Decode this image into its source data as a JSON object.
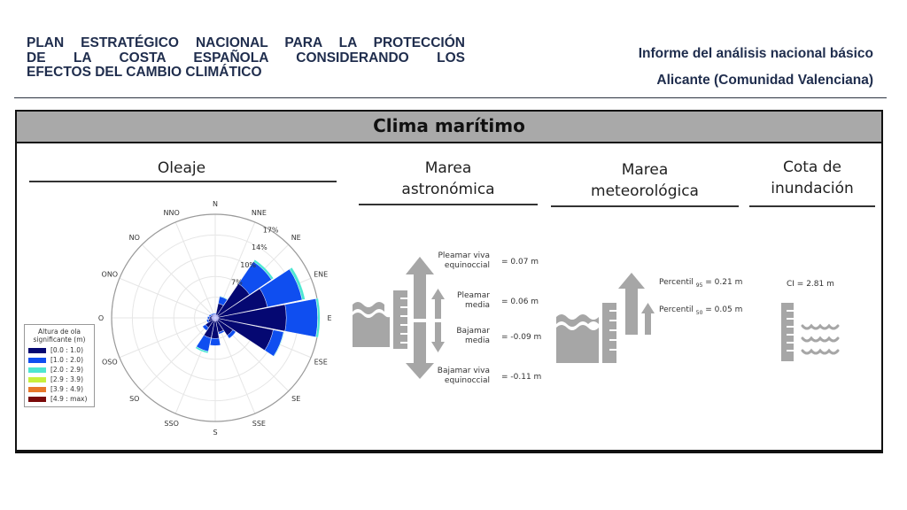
{
  "header": {
    "left_lines": [
      "PLAN ESTRATÉGICO NACIONAL PARA LA PROTECCIÓN",
      "DE LA COSTA ESPAÑOLA CONSIDERANDO LOS",
      "EFECTOS DEL CAMBIO CLIMÁTICO"
    ],
    "report_title": "Informe del análisis nacional básico",
    "location": "Alicante (Comunidad Valenciana)"
  },
  "panel": {
    "title": "Clima marítimo",
    "sections": {
      "oleaje": "Oleaje",
      "marea_astro_1": "Marea",
      "marea_astro_2": "astronómica",
      "marea_meteo_1": "Marea",
      "marea_meteo_2": "meteorológica",
      "cota_1": "Cota de",
      "cota_2": "inundación"
    }
  },
  "astronomical_tide": {
    "items": [
      {
        "label_1": "Pleamar viva",
        "label_2": "equinoccial",
        "value": "= 0.07 m"
      },
      {
        "label_1": "Pleamar",
        "label_2": "media",
        "value": "= 0.06 m"
      },
      {
        "label_1": "Bajamar",
        "label_2": "media",
        "value": "= -0.09 m"
      },
      {
        "label_1": "Bajamar viva",
        "label_2": "equinoccial",
        "value": "= -0.11 m"
      }
    ]
  },
  "meteorological_tide": {
    "p95": {
      "label": "Percentil",
      "sub": "95",
      "value": "= 0.21 m"
    },
    "p50": {
      "label": "Percentil",
      "sub": "50",
      "value": "= 0.05 m"
    }
  },
  "flood_level": {
    "value": "CI = 2.81 m"
  },
  "colors": {
    "navy": "#050872",
    "blue": "#0f4ef0",
    "cyan": "#4de6d2",
    "yellow": "#c8f03c",
    "orange": "#e8782a",
    "darkred": "#7a0a0a",
    "icon_gray": "#a6a6a6",
    "header_text": "#1f2d4d"
  },
  "chart_data": {
    "type": "wind-rose",
    "title": "Oleaje",
    "directions": [
      "N",
      "NNE",
      "NE",
      "ENE",
      "E",
      "ESE",
      "SE",
      "SSE",
      "S",
      "SSO",
      "SO",
      "OSO",
      "O",
      "ONO",
      "NO",
      "NNO"
    ],
    "radial_ticks": [
      "3%",
      "7%",
      "10%",
      "14%",
      "17%"
    ],
    "rmax": 17.5,
    "legend_title": "Altura de ola significante (m)",
    "bins": [
      "[0.0 : 1.0)",
      "[1.0 : 2.0)",
      "[2.0 : 2.9)",
      "[2.9 : 3.9)",
      "[3.9 : 4.9)",
      "[4.9 : max)"
    ],
    "series": [
      {
        "name": "[0.0 : 1.0)",
        "color": "#050872",
        "values": [
          0.6,
          2.5,
          7.0,
          9.0,
          12.0,
          10.0,
          3.6,
          2.5,
          3.5,
          3.5,
          2.0,
          1.2,
          1.0,
          0.8,
          0.7,
          0.6
        ]
      },
      {
        "name": "[1.0 : 2.0)",
        "color": "#0f4ef0",
        "values": [
          0.2,
          1.2,
          4.5,
          6.0,
          5.3,
          1.8,
          0.6,
          0.3,
          1.2,
          2.3,
          0.6,
          0.3,
          0.3,
          0.3,
          0.2,
          0.2
        ]
      },
      {
        "name": "[2.0 : 2.9)",
        "color": "#4de6d2",
        "values": [
          0.0,
          0.1,
          0.4,
          0.5,
          0.4,
          0.1,
          0.0,
          0.0,
          0.0,
          0.3,
          0.0,
          0.0,
          0.0,
          0.0,
          0.0,
          0.0
        ]
      },
      {
        "name": "[2.9 : 3.9)",
        "color": "#c8f03c",
        "values": [
          0,
          0,
          0,
          0,
          0,
          0,
          0,
          0,
          0,
          0,
          0,
          0,
          0,
          0,
          0,
          0
        ]
      },
      {
        "name": "[3.9 : 4.9)",
        "color": "#e8782a",
        "values": [
          0,
          0,
          0,
          0,
          0,
          0,
          0,
          0,
          0,
          0,
          0,
          0,
          0,
          0,
          0,
          0
        ]
      },
      {
        "name": "[4.9 : max)",
        "color": "#7a0a0a",
        "values": [
          0,
          0,
          0,
          0,
          0,
          0,
          0,
          0,
          0,
          0,
          0,
          0,
          0,
          0,
          0,
          0
        ]
      }
    ]
  }
}
